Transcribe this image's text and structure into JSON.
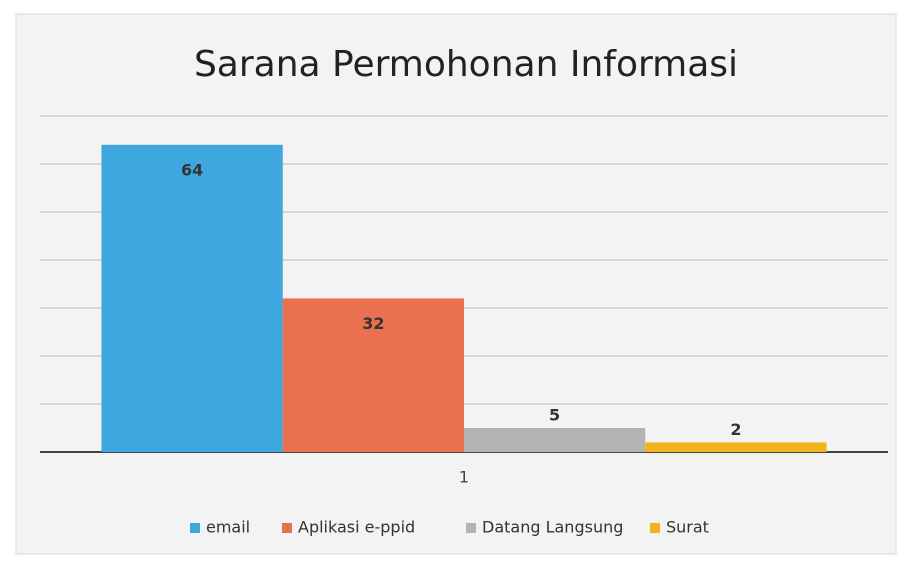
{
  "chart_data": {
    "type": "bar",
    "title": "Sarana Permohonan Informasi",
    "categories": [
      "1"
    ],
    "series": [
      {
        "name": "email",
        "color": "#3fa7df",
        "values": [
          64
        ]
      },
      {
        "name": "Aplikasi e-ppid",
        "color": "#e9714f",
        "values": [
          32
        ]
      },
      {
        "name": "Datang Langsung",
        "color": "#b3b3b3",
        "values": [
          5
        ]
      },
      {
        "name": "Surat",
        "color": "#f2b51d",
        "values": [
          2
        ]
      }
    ],
    "ylim": [
      0,
      70
    ],
    "yticks": [
      0,
      10,
      20,
      30,
      40,
      50,
      60,
      70
    ],
    "grid": true,
    "legend": "bottom"
  }
}
